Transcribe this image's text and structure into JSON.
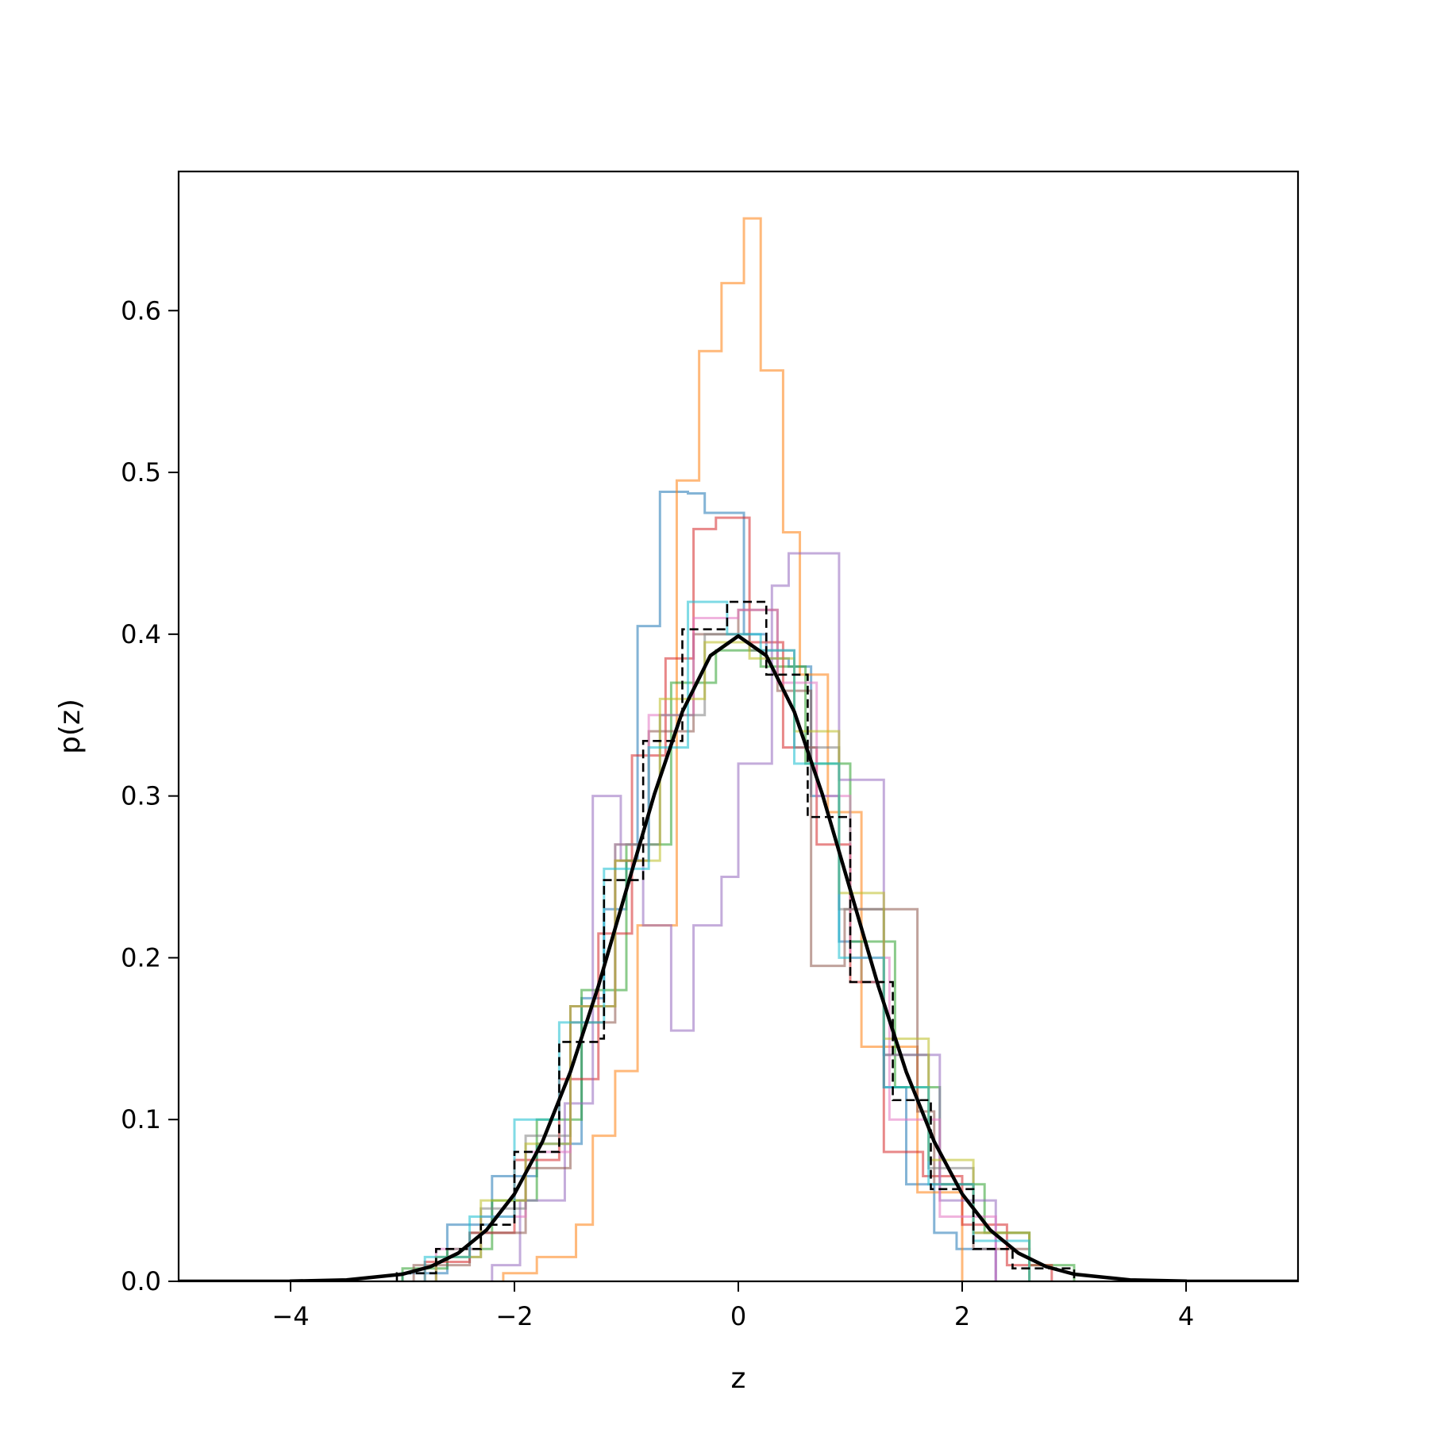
{
  "chart_data": {
    "type": "line",
    "title": "",
    "xlabel": "z",
    "ylabel": "p(z)",
    "xlim": [
      -5,
      5
    ],
    "ylim": [
      0,
      0.686
    ],
    "xticks": [
      -4,
      -2,
      0,
      2,
      4
    ],
    "xtick_labels": [
      "−4",
      "−2",
      "0",
      "2",
      "4"
    ],
    "yticks": [
      0.0,
      0.1,
      0.2,
      0.3,
      0.4,
      0.5,
      0.6
    ],
    "ytick_labels": [
      "0.0",
      "0.1",
      "0.2",
      "0.3",
      "0.4",
      "0.5",
      "0.6"
    ],
    "grid": false,
    "legend": false,
    "reference_curve": {
      "style": "solid black",
      "x": [
        -4.0,
        -3.5,
        -3.0,
        -2.75,
        -2.5,
        -2.25,
        -2.0,
        -1.75,
        -1.5,
        -1.25,
        -1.0,
        -0.75,
        -0.5,
        -0.25,
        0.0,
        0.25,
        0.5,
        0.75,
        1.0,
        1.25,
        1.5,
        1.75,
        2.0,
        2.25,
        2.5,
        2.75,
        3.0,
        3.5,
        4.0
      ],
      "y": [
        0.0001,
        0.0009,
        0.0044,
        0.0091,
        0.0175,
        0.0317,
        0.054,
        0.0863,
        0.1295,
        0.1826,
        0.242,
        0.3011,
        0.3521,
        0.3867,
        0.3989,
        0.3867,
        0.3521,
        0.3011,
        0.242,
        0.1826,
        0.1295,
        0.0863,
        0.054,
        0.0317,
        0.0175,
        0.0091,
        0.0044,
        0.0009,
        0.0001
      ]
    },
    "reference_histogram": {
      "style": "dashed black step",
      "bin_edges": [
        -3.05,
        -2.7,
        -2.3,
        -2.0,
        -1.6,
        -1.25,
        -1.2,
        -0.85,
        -0.5,
        -0.1,
        0.25,
        0.62,
        1.0,
        1.38,
        1.72,
        2.1,
        2.45,
        3.0
      ],
      "values": [
        0.005,
        0.02,
        0.035,
        0.08,
        0.148,
        0.15,
        0.248,
        0.334,
        0.403,
        0.42,
        0.375,
        0.287,
        0.185,
        0.112,
        0.057,
        0.02,
        0.008
      ]
    },
    "series": [
      {
        "color": "#1f77b4",
        "bin_edges": [
          -3.0,
          -2.6,
          -2.2,
          -1.8,
          -1.4,
          -1.2,
          -1.0,
          -0.9,
          -0.7,
          -0.45,
          -0.3,
          0.05,
          0.25,
          0.45,
          0.65,
          0.9,
          1.1,
          1.3,
          1.5,
          1.75,
          1.95,
          2.3
        ],
        "values": [
          0.005,
          0.035,
          0.065,
          0.085,
          0.175,
          0.23,
          0.26,
          0.405,
          0.488,
          0.487,
          0.475,
          0.4,
          0.385,
          0.38,
          0.3,
          0.21,
          0.185,
          0.12,
          0.06,
          0.03,
          0.02
        ]
      },
      {
        "color": "#ff7f0e",
        "bin_edges": [
          -2.1,
          -1.8,
          -1.45,
          -1.3,
          -1.1,
          -0.9,
          -0.55,
          -0.35,
          -0.15,
          0.05,
          0.2,
          0.4,
          0.55,
          0.8,
          1.1,
          1.6,
          2.0
        ],
        "values": [
          0.005,
          0.015,
          0.035,
          0.09,
          0.13,
          0.22,
          0.495,
          0.575,
          0.617,
          0.657,
          0.563,
          0.463,
          0.375,
          0.29,
          0.145,
          0.055
        ]
      },
      {
        "color": "#2ca02c",
        "bin_edges": [
          -3.0,
          -2.6,
          -2.2,
          -1.8,
          -1.4,
          -1.0,
          -0.6,
          -0.2,
          0.2,
          0.6,
          1.0,
          1.4,
          1.8,
          2.2,
          2.6,
          3.0
        ],
        "values": [
          0.008,
          0.02,
          0.05,
          0.1,
          0.18,
          0.27,
          0.37,
          0.39,
          0.38,
          0.32,
          0.21,
          0.12,
          0.06,
          0.03,
          0.01
        ]
      },
      {
        "color": "#d62728",
        "bin_edges": [
          -2.8,
          -2.4,
          -2.0,
          -1.6,
          -1.25,
          -0.95,
          -0.65,
          -0.4,
          -0.2,
          0.1,
          0.4,
          0.7,
          1.0,
          1.3,
          1.65,
          2.0,
          2.4,
          2.8
        ],
        "values": [
          0.012,
          0.03,
          0.075,
          0.125,
          0.215,
          0.325,
          0.385,
          0.465,
          0.472,
          0.395,
          0.33,
          0.27,
          0.185,
          0.08,
          0.065,
          0.035,
          0.01
        ]
      },
      {
        "color": "#9467bd",
        "bin_edges": [
          -2.2,
          -1.95,
          -1.55,
          -1.3,
          -1.05,
          -0.85,
          -0.6,
          -0.4,
          -0.15,
          0.0,
          0.3,
          0.45,
          0.9,
          1.3,
          1.8,
          2.3
        ],
        "values": [
          0.01,
          0.05,
          0.11,
          0.3,
          0.26,
          0.22,
          0.155,
          0.22,
          0.25,
          0.32,
          0.43,
          0.45,
          0.31,
          0.14,
          0.05
        ]
      },
      {
        "color": "#8c564b",
        "bin_edges": [
          -2.9,
          -2.4,
          -1.9,
          -1.5,
          -1.1,
          -0.8,
          -0.4,
          0.0,
          0.35,
          0.65,
          0.95,
          1.3,
          1.6,
          1.75,
          2.1,
          2.6
        ],
        "values": [
          0.01,
          0.03,
          0.07,
          0.16,
          0.26,
          0.34,
          0.4,
          0.415,
          0.365,
          0.195,
          0.23,
          0.23,
          0.105,
          0.06,
          0.02
        ]
      },
      {
        "color": "#e377c2",
        "bin_edges": [
          -2.7,
          -2.3,
          -1.9,
          -1.5,
          -1.1,
          -0.8,
          -0.4,
          0.0,
          0.35,
          0.7,
          1.0,
          1.35,
          1.8,
          2.3
        ],
        "values": [
          0.02,
          0.04,
          0.08,
          0.17,
          0.27,
          0.35,
          0.41,
          0.415,
          0.37,
          0.3,
          0.2,
          0.1,
          0.04
        ]
      },
      {
        "color": "#7f7f7f",
        "bin_edges": [
          -2.7,
          -2.3,
          -1.9,
          -1.5,
          -1.1,
          -0.7,
          -0.3,
          0.1,
          0.5,
          0.9,
          1.3,
          1.7,
          2.1,
          2.6
        ],
        "values": [
          0.015,
          0.045,
          0.09,
          0.17,
          0.27,
          0.35,
          0.4,
          0.39,
          0.33,
          0.23,
          0.14,
          0.07,
          0.03
        ]
      },
      {
        "color": "#bcbd22",
        "bin_edges": [
          -2.7,
          -2.3,
          -1.9,
          -1.5,
          -1.1,
          -0.7,
          -0.3,
          0.1,
          0.5,
          0.9,
          1.3,
          1.7,
          2.1,
          2.6
        ],
        "values": [
          0.015,
          0.05,
          0.085,
          0.17,
          0.26,
          0.36,
          0.395,
          0.385,
          0.34,
          0.24,
          0.15,
          0.075,
          0.03
        ]
      },
      {
        "color": "#17becf",
        "bin_edges": [
          -2.8,
          -2.4,
          -2.0,
          -1.6,
          -1.2,
          -0.8,
          -0.45,
          -0.1,
          0.2,
          0.5,
          0.9,
          1.3,
          1.7,
          2.1,
          2.6
        ],
        "values": [
          0.015,
          0.04,
          0.1,
          0.16,
          0.255,
          0.33,
          0.42,
          0.4,
          0.39,
          0.32,
          0.2,
          0.12,
          0.06,
          0.025
        ]
      }
    ]
  }
}
